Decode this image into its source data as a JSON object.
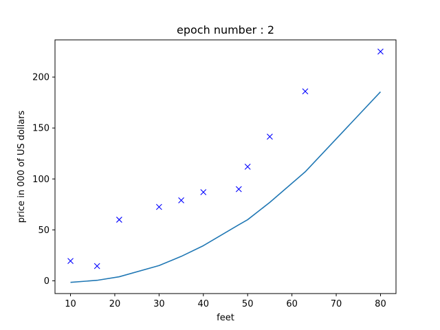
{
  "chart_data": {
    "type": "scatter",
    "title": "epoch number : 2",
    "xlabel": "feet",
    "ylabel": "price in 000 of US dollars",
    "xlim": [
      6.5,
      83.5
    ],
    "ylim": [
      -12.5,
      236.5
    ],
    "xticks": [
      10,
      20,
      30,
      40,
      50,
      60,
      70,
      80
    ],
    "yticks": [
      0,
      50,
      100,
      150,
      200
    ],
    "grid": false,
    "series": [
      {
        "kind": "scatter",
        "marker": "x",
        "color": "#0000ff",
        "x": [
          10,
          16,
          21,
          30,
          35,
          40,
          48,
          50,
          55,
          63,
          80
        ],
        "y": [
          19.5,
          14.5,
          60,
          72.5,
          79,
          87,
          90,
          112,
          141.5,
          186,
          225
        ]
      },
      {
        "kind": "line",
        "color": "#1f77b4",
        "x": [
          10,
          16,
          21,
          30,
          35,
          40,
          48,
          50,
          55,
          63,
          80
        ],
        "y": [
          -1.5,
          0.5,
          4,
          15,
          24,
          34.5,
          55,
          60,
          77,
          107,
          185.5
        ]
      }
    ]
  }
}
